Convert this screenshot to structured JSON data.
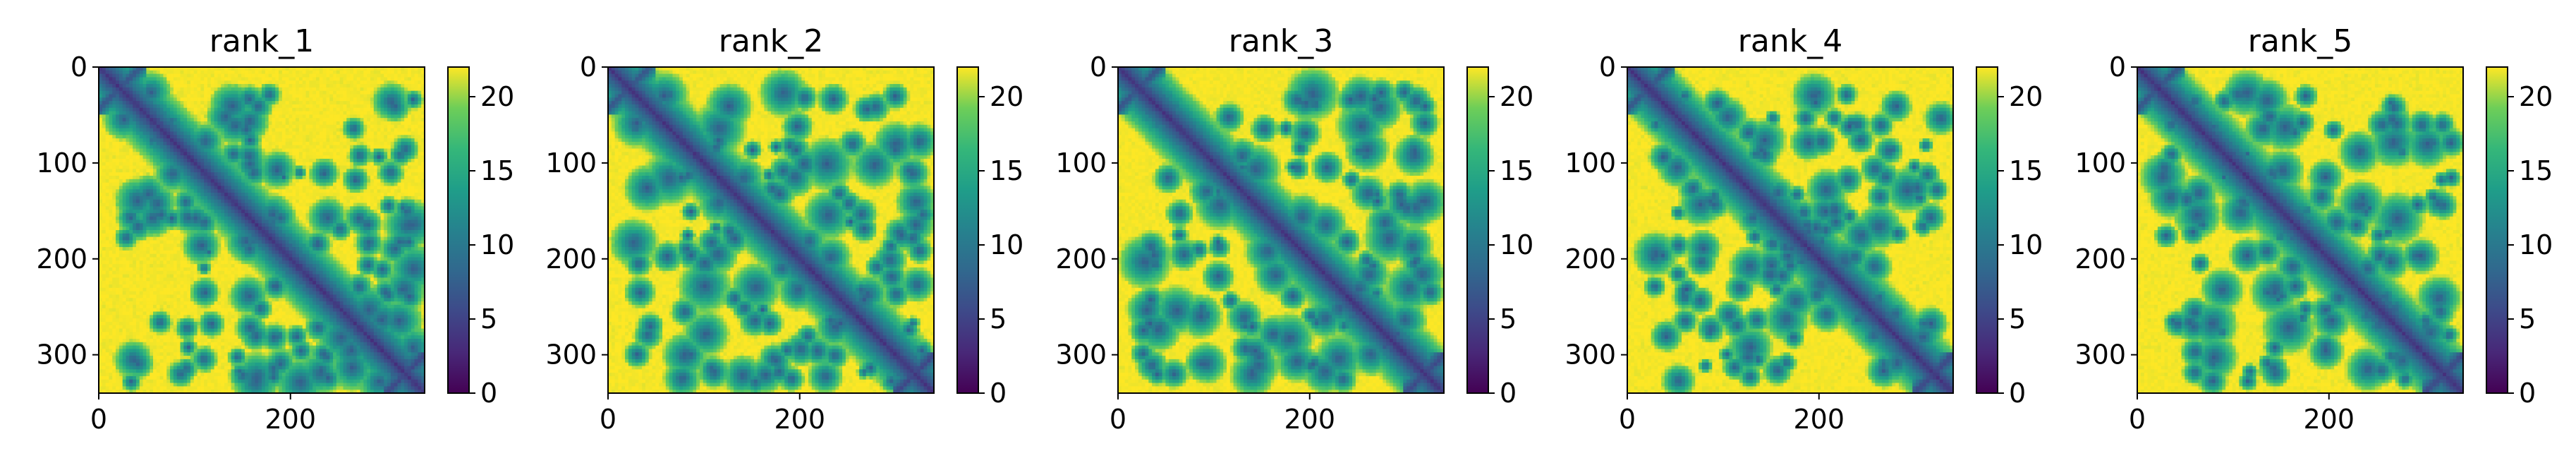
{
  "figure": {
    "panel_titles": [
      "rank_1",
      "rank_2",
      "rank_3",
      "rank_4",
      "rank_5"
    ]
  },
  "chart_data": [
    {
      "type": "heatmap",
      "title": "rank_1",
      "xlabel": "",
      "ylabel": "",
      "xlim": [
        0,
        340
      ],
      "ylim": [
        340,
        0
      ],
      "x_ticks": [
        0,
        200
      ],
      "y_ticks": [
        0,
        100,
        200,
        300
      ],
      "colorbar": {
        "range": [
          0,
          22
        ],
        "ticks": [
          0,
          5,
          10,
          15,
          20
        ],
        "colormap": "viridis"
      },
      "matrix_size": 340
    },
    {
      "type": "heatmap",
      "title": "rank_2",
      "xlabel": "",
      "ylabel": "",
      "xlim": [
        0,
        340
      ],
      "ylim": [
        340,
        0
      ],
      "x_ticks": [
        0,
        200
      ],
      "y_ticks": [
        0,
        100,
        200,
        300
      ],
      "colorbar": {
        "range": [
          0,
          22
        ],
        "ticks": [
          0,
          5,
          10,
          15,
          20
        ],
        "colormap": "viridis"
      },
      "matrix_size": 340
    },
    {
      "type": "heatmap",
      "title": "rank_3",
      "xlabel": "",
      "ylabel": "",
      "xlim": [
        0,
        340
      ],
      "ylim": [
        340,
        0
      ],
      "x_ticks": [
        0,
        200
      ],
      "y_ticks": [
        0,
        100,
        200,
        300
      ],
      "colorbar": {
        "range": [
          0,
          22
        ],
        "ticks": [
          0,
          5,
          10,
          15,
          20
        ],
        "colormap": "viridis"
      },
      "matrix_size": 340
    },
    {
      "type": "heatmap",
      "title": "rank_4",
      "xlabel": "",
      "ylabel": "",
      "xlim": [
        0,
        340
      ],
      "ylim": [
        340,
        0
      ],
      "x_ticks": [
        0,
        200
      ],
      "y_ticks": [
        0,
        100,
        200,
        300
      ],
      "colorbar": {
        "range": [
          0,
          22
        ],
        "ticks": [
          0,
          5,
          10,
          15,
          20
        ],
        "colormap": "viridis"
      },
      "matrix_size": 340
    },
    {
      "type": "heatmap",
      "title": "rank_5",
      "xlabel": "",
      "ylabel": "",
      "xlim": [
        0,
        340
      ],
      "ylim": [
        340,
        0
      ],
      "x_ticks": [
        0,
        200
      ],
      "y_ticks": [
        0,
        100,
        200,
        300
      ],
      "colorbar": {
        "range": [
          0,
          22
        ],
        "ticks": [
          0,
          5,
          10,
          15,
          20
        ],
        "colormap": "viridis"
      },
      "matrix_size": 340
    }
  ]
}
